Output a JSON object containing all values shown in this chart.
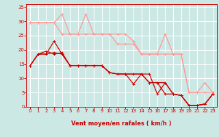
{
  "bg_color": "#cce8e4",
  "grid_color": "#ffffff",
  "line_color_dark": "#cc0000",
  "line_color_light": "#ff9999",
  "xlabel": "Vent moyen/en rafales ( km/h )",
  "xlabel_color": "#cc0000",
  "tick_color": "#cc0000",
  "xlim": [
    -0.5,
    23.5
  ],
  "ylim": [
    0,
    36
  ],
  "yticks": [
    0,
    5,
    10,
    15,
    20,
    25,
    30,
    35
  ],
  "xticks": [
    0,
    1,
    2,
    3,
    4,
    5,
    6,
    7,
    8,
    9,
    10,
    11,
    12,
    13,
    14,
    15,
    16,
    17,
    18,
    19,
    20,
    21,
    22,
    23
  ],
  "lines_dark": [
    {
      "x": [
        0,
        1,
        2,
        3,
        4,
        5,
        6,
        7,
        8,
        9,
        10,
        11,
        12,
        13,
        14,
        15,
        16,
        17,
        18,
        19,
        20,
        21,
        22,
        23
      ],
      "y": [
        14.5,
        18.5,
        18.5,
        23.0,
        18.5,
        14.5,
        14.5,
        14.5,
        14.5,
        14.5,
        12.0,
        11.5,
        11.5,
        8.0,
        11.5,
        11.5,
        4.5,
        8.5,
        4.5,
        4.0,
        0.5,
        0.5,
        1.0,
        4.5
      ]
    },
    {
      "x": [
        0,
        1,
        2,
        3,
        4,
        5,
        6,
        7,
        8,
        9,
        10,
        11,
        12,
        13,
        14,
        15,
        16,
        17,
        18,
        19,
        20,
        21,
        22,
        23
      ],
      "y": [
        14.5,
        18.5,
        19.5,
        18.5,
        19.0,
        14.5,
        14.5,
        14.5,
        14.5,
        14.5,
        12.0,
        11.5,
        11.5,
        11.5,
        11.5,
        8.5,
        8.5,
        4.5,
        4.5,
        4.0,
        0.5,
        0.5,
        1.0,
        4.5
      ]
    },
    {
      "x": [
        0,
        1,
        2,
        3,
        4,
        5,
        6,
        7,
        8,
        9,
        10,
        11,
        12,
        13,
        14,
        15,
        16,
        17,
        18,
        19,
        20,
        21,
        22,
        23
      ],
      "y": [
        14.5,
        18.5,
        18.5,
        19.0,
        18.5,
        14.5,
        14.5,
        14.5,
        14.5,
        14.5,
        12.0,
        11.5,
        11.5,
        11.5,
        11.5,
        8.5,
        8.5,
        8.5,
        4.5,
        4.0,
        0.5,
        0.5,
        1.0,
        4.5
      ]
    }
  ],
  "lines_light": [
    {
      "x": [
        0,
        1,
        2,
        3,
        4,
        5,
        6,
        7,
        8,
        9,
        10,
        11,
        12,
        13,
        14,
        15,
        16,
        17,
        18,
        19,
        20,
        21,
        22,
        23
      ],
      "y": [
        29.5,
        29.5,
        29.5,
        29.5,
        32.5,
        25.5,
        25.5,
        32.5,
        25.5,
        25.5,
        25.5,
        25.5,
        25.5,
        23.0,
        18.5,
        18.5,
        18.5,
        25.5,
        18.5,
        18.5,
        5.0,
        5.0,
        8.5,
        5.0
      ]
    },
    {
      "x": [
        0,
        1,
        2,
        3,
        4,
        5,
        6,
        7,
        8,
        9,
        10,
        11,
        12,
        13,
        14,
        15,
        16,
        17,
        18,
        19,
        20,
        21,
        22,
        23
      ],
      "y": [
        29.5,
        29.5,
        29.5,
        29.5,
        25.5,
        25.5,
        25.5,
        25.5,
        25.5,
        25.5,
        25.5,
        22.0,
        22.0,
        22.0,
        18.5,
        18.5,
        18.5,
        18.5,
        18.5,
        18.5,
        5.0,
        5.0,
        5.0,
        5.0
      ]
    }
  ]
}
